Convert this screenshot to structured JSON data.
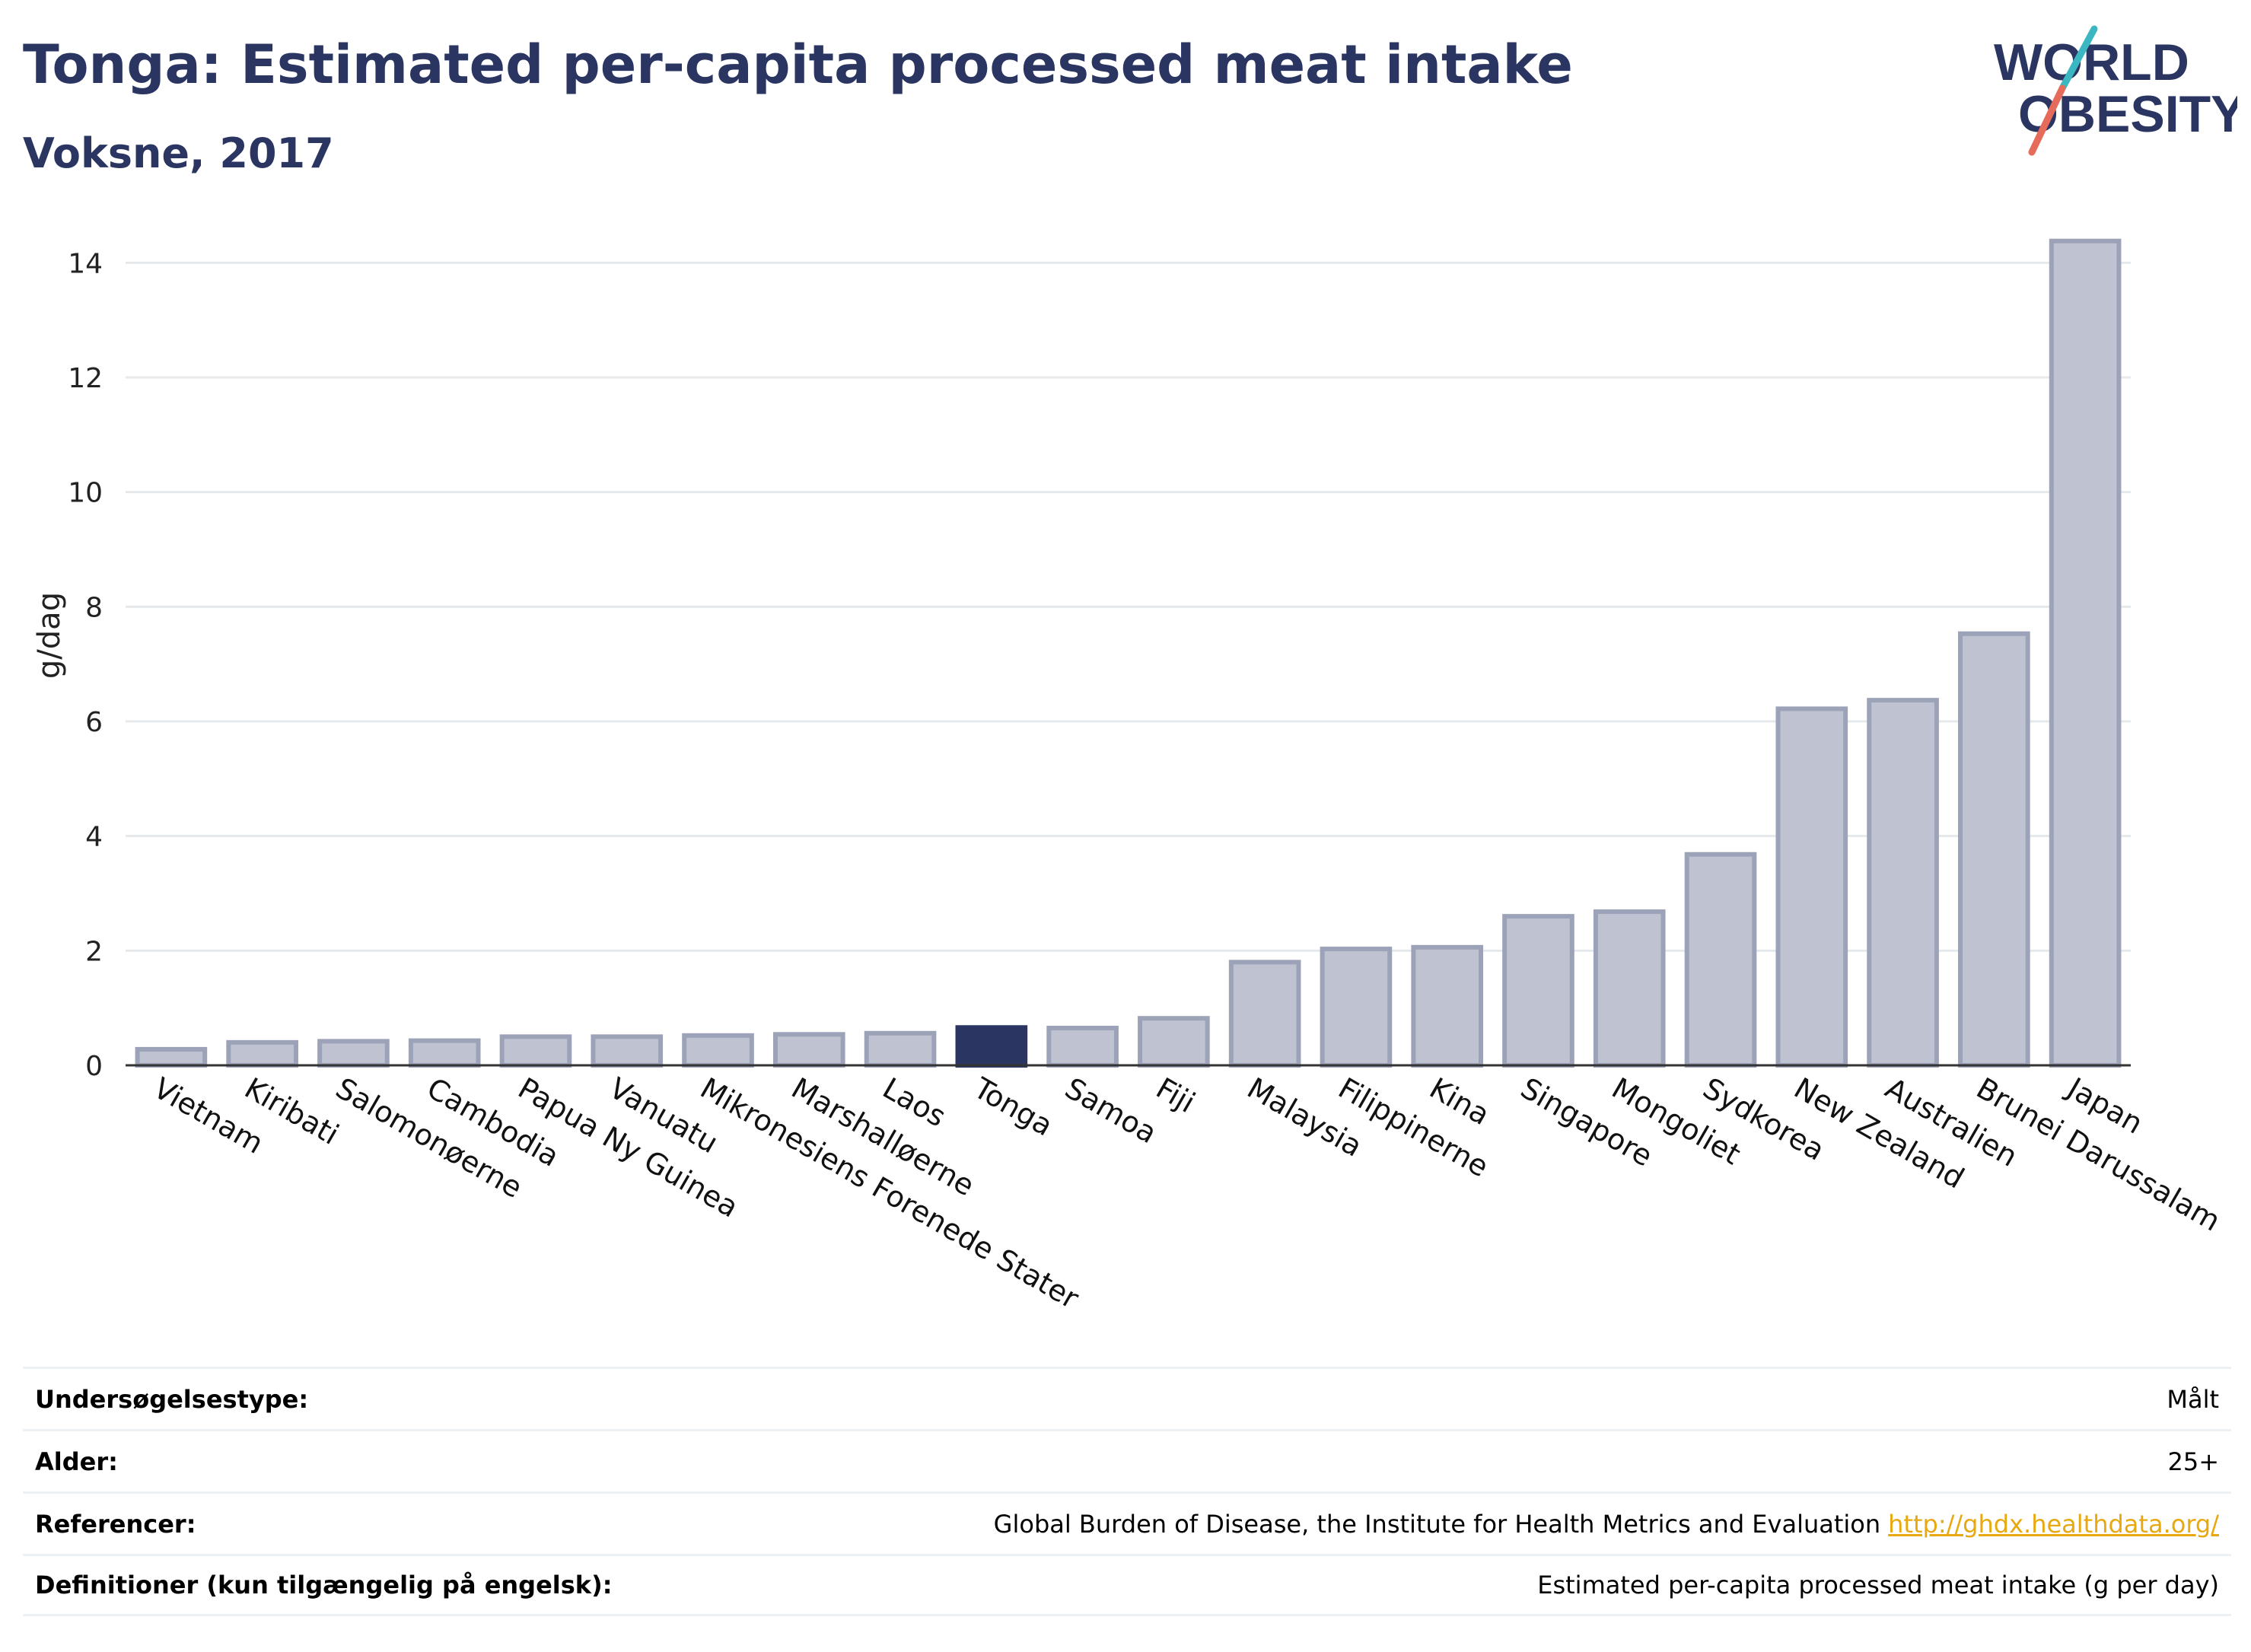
{
  "header": {
    "title": "Tonga: Estimated per-capita processed meat intake",
    "subtitle": "Voksne, 2017"
  },
  "logo": {
    "line1": "WORLD",
    "line2": "OBESITY",
    "colors": {
      "text": "#2a3562",
      "slash_teal": "#3ab7c1",
      "slash_red": "#e66b5b"
    }
  },
  "colors": {
    "bar": "#bfc3d1",
    "bar_stroke": "#9ca2b8",
    "highlight": "#2a3562",
    "grid": "#e6e9ec",
    "axis": "#333333"
  },
  "chart_data": {
    "type": "bar",
    "ylabel": "g/dag",
    "xlabel": "",
    "ylim": [
      0,
      15
    ],
    "yticks": [
      0,
      2,
      4,
      6,
      8,
      10,
      12,
      14
    ],
    "grid": true,
    "highlight": "Tonga",
    "categories": [
      "Vietnam",
      "Kiribati",
      "Salomonøerne",
      "Cambodia",
      "Papua Ny Guinea",
      "Vanuatu",
      "Mikronesiens Forenede Stater",
      "Marshalløerne",
      "Laos",
      "Tonga",
      "Samoa",
      "Fiji",
      "Malaysia",
      "Filippinerne",
      "Kina",
      "Singapore",
      "Mongoliet",
      "Sydkorea",
      "New Zealand",
      "Australien",
      "Brunei Darussalam",
      "Japan"
    ],
    "values": [
      0.28,
      0.4,
      0.42,
      0.43,
      0.5,
      0.5,
      0.52,
      0.54,
      0.56,
      0.66,
      0.65,
      0.82,
      1.8,
      2.03,
      2.06,
      2.6,
      2.68,
      3.68,
      6.22,
      6.37,
      7.53,
      14.38
    ]
  },
  "info": [
    {
      "label": "Undersøgelsestype:",
      "value": "Målt"
    },
    {
      "label": "Alder:",
      "value": "25+"
    },
    {
      "label": "Referencer:",
      "value": "Global Burden of Disease, the Institute for Health Metrics and Evaluation",
      "link": "http://ghdx.healthdata.org/"
    },
    {
      "label": "Definitioner (kun tilgængelig på engelsk):",
      "value": "Estimated per-capita processed meat intake (g per day)"
    }
  ]
}
